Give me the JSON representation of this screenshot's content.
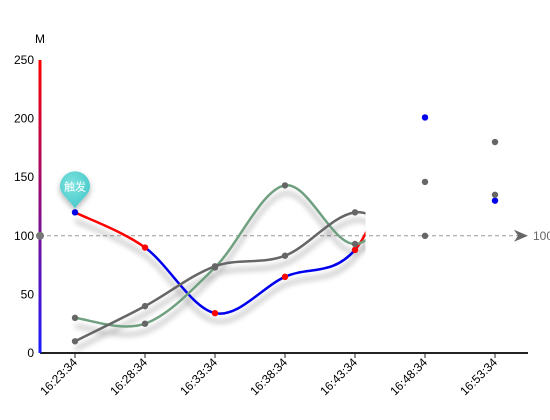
{
  "chart_data": {
    "type": "line",
    "y_unit": "M",
    "categories": [
      "16:23:34",
      "16:28:34",
      "16:33:34",
      "16:38:34",
      "16:43:34",
      "16:48:34",
      "16:53:34"
    ],
    "ylim": [
      0,
      250
    ],
    "y_ticks": [
      0,
      50,
      100,
      150,
      200,
      250
    ],
    "reference_line": {
      "value": 100,
      "label": "100"
    },
    "axis_color_gradient": [
      "#1a1aff",
      "#ff0000"
    ],
    "revealed_until_index": 4.15,
    "series": [
      {
        "color": "#0000ee",
        "colors": [
          "#0000ee",
          "#ff0000"
        ],
        "split_value": 90,
        "values": [
          120,
          90,
          34,
          65,
          88,
          201,
          130
        ],
        "line_width": 2.5
      },
      {
        "color": "#70a080",
        "values": [
          30,
          25,
          73,
          143,
          93,
          146,
          135
        ],
        "line_width": 2.5
      },
      {
        "color": "#666666",
        "values": [
          10,
          40,
          74,
          83,
          120,
          100,
          180
        ],
        "line_width": 2.5
      }
    ],
    "marker": {
      "label": "触发",
      "category_index": 0,
      "value": 120,
      "color": "#3cc4c6"
    }
  }
}
